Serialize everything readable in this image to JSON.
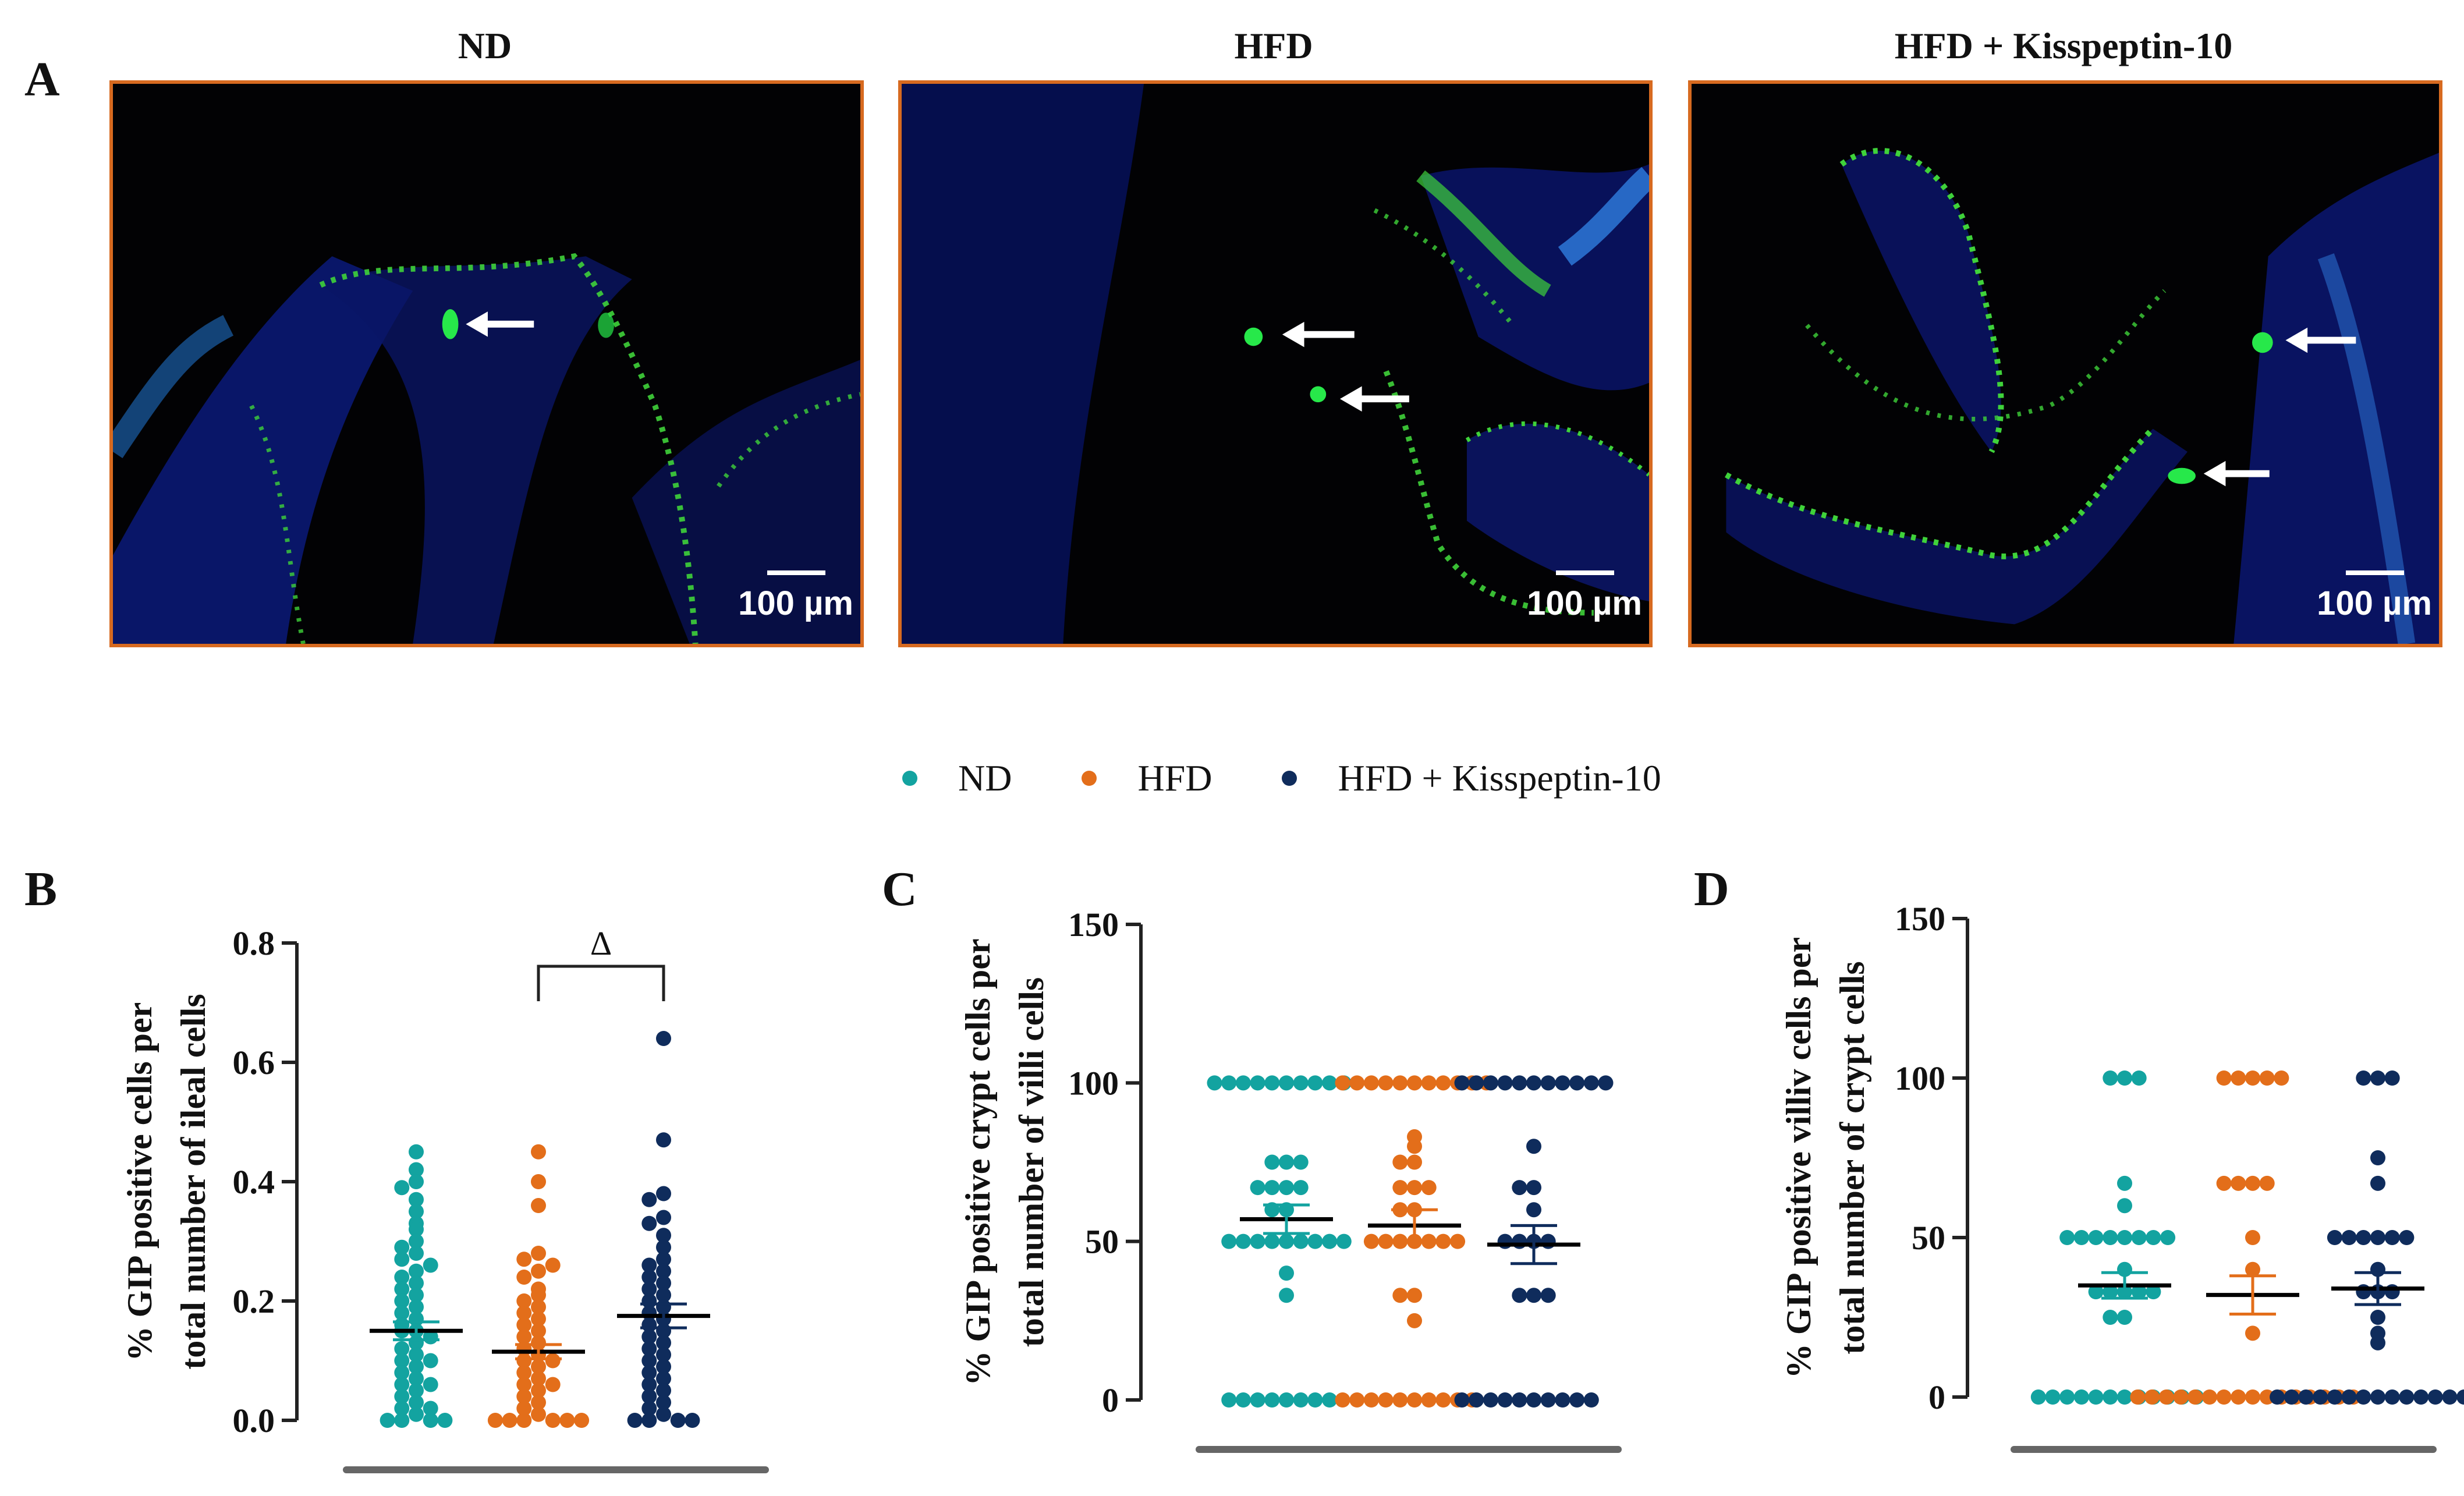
{
  "panel_a": {
    "letter": "A",
    "images": [
      {
        "title": "ND",
        "scale_label": "100 µm"
      },
      {
        "title": "HFD",
        "scale_label": "100 µm"
      },
      {
        "title": "HFD + Kisspeptin-10",
        "scale_label": "100 µm"
      }
    ]
  },
  "legend": [
    {
      "label": "ND",
      "color": "#13a3a0"
    },
    {
      "label": "HFD",
      "color": "#e36e1a"
    },
    {
      "label": "HFD + Kisspeptin-10",
      "color": "#0f2c5c"
    }
  ],
  "chart_data": [
    {
      "panel": "B",
      "type": "scatter",
      "ylabel_lines": [
        "% GIP positive cells per",
        "total number of ileal cells"
      ],
      "ylim": [
        0,
        0.8
      ],
      "yticks": [
        "0.0",
        "0.2",
        "0.4",
        "0.6",
        "0.8"
      ],
      "annotation": "Δ",
      "groups": [
        {
          "name": "ND",
          "mean": 0.15,
          "sem": 0.015,
          "values": [
            0.45,
            0.42,
            0.4,
            0.39,
            0.37,
            0.35,
            0.33,
            0.32,
            0.3,
            0.29,
            0.28,
            0.27,
            0.26,
            0.25,
            0.24,
            0.23,
            0.22,
            0.21,
            0.2,
            0.19,
            0.18,
            0.17,
            0.16,
            0.15,
            0.15,
            0.14,
            0.13,
            0.12,
            0.11,
            0.1,
            0.1,
            0.09,
            0.08,
            0.07,
            0.06,
            0.06,
            0.05,
            0.04,
            0.03,
            0.02,
            0.02,
            0.01,
            0.0,
            0.0,
            0.0,
            0.0
          ]
        },
        {
          "name": "HFD",
          "mean": 0.115,
          "sem": 0.012,
          "values": [
            0.45,
            0.4,
            0.36,
            0.28,
            0.27,
            0.26,
            0.25,
            0.24,
            0.22,
            0.21,
            0.2,
            0.19,
            0.18,
            0.17,
            0.16,
            0.15,
            0.14,
            0.13,
            0.12,
            0.11,
            0.1,
            0.1,
            0.09,
            0.08,
            0.07,
            0.06,
            0.06,
            0.05,
            0.04,
            0.03,
            0.02,
            0.01,
            0.0,
            0.0,
            0.0,
            0.0,
            0.0,
            0.0
          ]
        },
        {
          "name": "HFD + Kisspeptin-10",
          "mean": 0.175,
          "sem": 0.02,
          "values": [
            0.64,
            0.47,
            0.38,
            0.37,
            0.34,
            0.33,
            0.31,
            0.29,
            0.27,
            0.26,
            0.25,
            0.24,
            0.23,
            0.22,
            0.21,
            0.2,
            0.19,
            0.18,
            0.17,
            0.16,
            0.15,
            0.14,
            0.13,
            0.12,
            0.11,
            0.1,
            0.09,
            0.08,
            0.07,
            0.06,
            0.05,
            0.04,
            0.03,
            0.02,
            0.01,
            0.0,
            0.0,
            0.0,
            0.0
          ]
        }
      ]
    },
    {
      "panel": "C",
      "type": "scatter",
      "ylabel_lines": [
        "% GIP positive crypt cells per",
        "total number of villi cells"
      ],
      "ylim": [
        0,
        150
      ],
      "yticks": [
        "0",
        "50",
        "100",
        "150"
      ],
      "groups": [
        {
          "name": "ND",
          "mean": 57,
          "sem": 4.5,
          "values": [
            100,
            100,
            100,
            100,
            100,
            100,
            100,
            100,
            100,
            100,
            75,
            75,
            75,
            67,
            67,
            67,
            67,
            60,
            60,
            50,
            50,
            50,
            50,
            50,
            50,
            50,
            50,
            50,
            40,
            33,
            0,
            0,
            0,
            0,
            0,
            0,
            0,
            0
          ]
        },
        {
          "name": "HFD",
          "mean": 55,
          "sem": 5,
          "values": [
            100,
            100,
            100,
            100,
            100,
            100,
            100,
            100,
            100,
            100,
            100,
            83,
            80,
            75,
            75,
            67,
            67,
            67,
            60,
            60,
            50,
            50,
            50,
            50,
            50,
            50,
            50,
            33,
            33,
            25,
            0,
            0,
            0,
            0,
            0,
            0,
            0,
            0,
            0,
            0
          ]
        },
        {
          "name": "HFD + Kisspeptin-10",
          "mean": 49,
          "sem": 6,
          "values": [
            100,
            100,
            100,
            100,
            100,
            100,
            100,
            100,
            100,
            100,
            100,
            80,
            67,
            67,
            60,
            50,
            50,
            50,
            50,
            33,
            33,
            33,
            0,
            0,
            0,
            0,
            0,
            0,
            0,
            0,
            0,
            0
          ]
        }
      ]
    },
    {
      "panel": "D",
      "type": "scatter",
      "ylabel_lines": [
        "% GIP positive villiv cells per",
        "total number of crypt cells"
      ],
      "ylim": [
        0,
        150
      ],
      "yticks": [
        "0",
        "50",
        "100",
        "150"
      ],
      "groups": [
        {
          "name": "ND",
          "mean": 35,
          "sem": 4,
          "values": [
            100,
            100,
            100,
            67,
            60,
            50,
            50,
            50,
            50,
            50,
            50,
            50,
            50,
            40,
            33,
            33,
            33,
            33,
            33,
            25,
            25,
            0,
            0,
            0,
            0,
            0,
            0,
            0,
            0,
            0,
            0,
            0,
            0
          ]
        },
        {
          "name": "HFD",
          "mean": 32,
          "sem": 6,
          "values": [
            100,
            100,
            100,
            100,
            100,
            67,
            67,
            67,
            67,
            50,
            40,
            20,
            0,
            0,
            0,
            0,
            0,
            0,
            0,
            0,
            0,
            0,
            0,
            0,
            0,
            0,
            0,
            0
          ]
        },
        {
          "name": "HFD + Kisspeptin-10",
          "mean": 34,
          "sem": 5,
          "values": [
            100,
            100,
            100,
            75,
            67,
            50,
            50,
            50,
            50,
            50,
            50,
            40,
            33,
            33,
            33,
            25,
            20,
            17,
            0,
            0,
            0,
            0,
            0,
            0,
            0,
            0,
            0,
            0,
            0,
            0,
            0,
            0
          ]
        }
      ]
    }
  ]
}
